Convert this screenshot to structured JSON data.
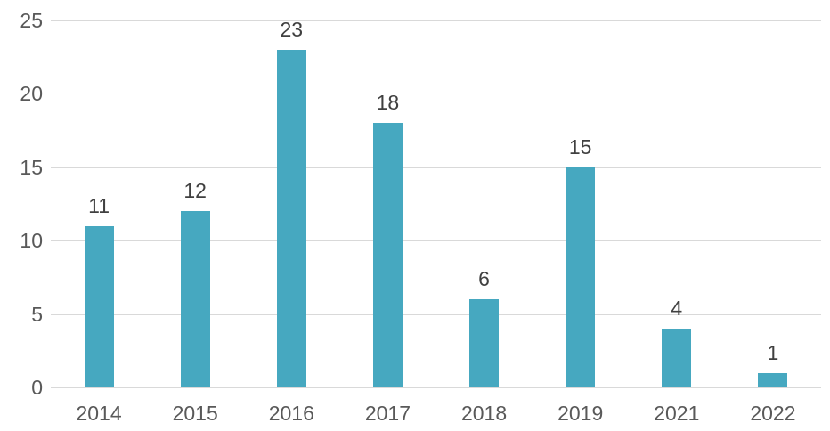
{
  "chart_data": {
    "type": "bar",
    "title": "",
    "categories": [
      "2014",
      "2015",
      "2016",
      "2017",
      "2018",
      "2019",
      "2021",
      "2022"
    ],
    "values": [
      11,
      12,
      23,
      18,
      6,
      15,
      4,
      1
    ],
    "data_labels": [
      "11",
      "12",
      "23",
      "18",
      "6",
      "15",
      "4",
      "1"
    ],
    "xlabel": "",
    "ylabel": "",
    "ylim": [
      0,
      25
    ],
    "yticks": [
      0,
      5,
      10,
      15,
      20,
      25
    ],
    "grid": "horizontal",
    "legend": "none",
    "colors": {
      "bar": "#46A8C0",
      "gridline": "#D9D9D9",
      "axis_text": "#595959",
      "data_label_text": "#404040",
      "background": "#FFFFFF"
    }
  }
}
